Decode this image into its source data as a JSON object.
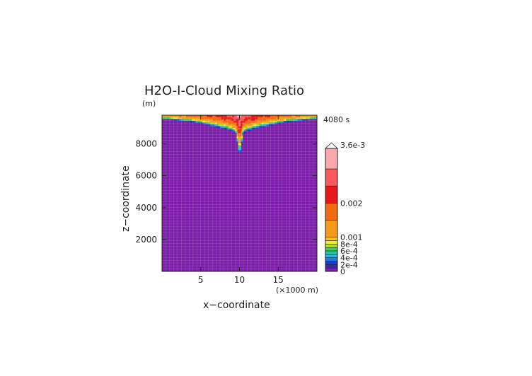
{
  "chart_data": {
    "type": "heatmap",
    "title": "H2O-I-Cloud Mixing Ratio",
    "y_unit": "(m)",
    "time_label": "4080 s",
    "xlabel": "x−coordinate",
    "ylabel": "z−coordinate",
    "x_unit": "(×1000 m)",
    "xlim": [
      0,
      20
    ],
    "ylim": [
      0,
      9800
    ],
    "x_ticks": [
      {
        "v": 5,
        "label": "5"
      },
      {
        "v": 10,
        "label": "10"
      },
      {
        "v": 15,
        "label": "15"
      }
    ],
    "y_ticks": [
      {
        "v": 2000,
        "label": "2000"
      },
      {
        "v": 4000,
        "label": "4000"
      },
      {
        "v": 6000,
        "label": "6000"
      },
      {
        "v": 8000,
        "label": "8000"
      }
    ],
    "grid": true,
    "colorbar": {
      "max_label": "3.6e-3",
      "labels": [
        {
          "v": 0,
          "label": "0"
        },
        {
          "v": 0.0002,
          "label": "2e-4"
        },
        {
          "v": 0.0004,
          "label": "4e-4"
        },
        {
          "v": 0.0006,
          "label": "6e-4"
        },
        {
          "v": 0.0008,
          "label": "8e-4"
        },
        {
          "v": 0.001,
          "label": "0.001"
        },
        {
          "v": 0.002,
          "label": "0.002"
        }
      ],
      "levels": [
        {
          "v": 0.0,
          "color": "#7d1eab"
        },
        {
          "v": 0.0001,
          "color": "#3a2aa8"
        },
        {
          "v": 0.0002,
          "color": "#1e3cd2"
        },
        {
          "v": 0.0003,
          "color": "#1e7be0"
        },
        {
          "v": 0.0004,
          "color": "#1fb6e6"
        },
        {
          "v": 0.0005,
          "color": "#26c7a4"
        },
        {
          "v": 0.0006,
          "color": "#3fce52"
        },
        {
          "v": 0.0007,
          "color": "#b4e02b"
        },
        {
          "v": 0.0008,
          "color": "#f2ee2c"
        },
        {
          "v": 0.0009,
          "color": "#f7c41c"
        },
        {
          "v": 0.001,
          "color": "#f79a19"
        },
        {
          "v": 0.0015,
          "color": "#f26a10"
        },
        {
          "v": 0.002,
          "color": "#e8161a"
        },
        {
          "v": 0.0025,
          "color": "#f8595c"
        },
        {
          "v": 0.003,
          "color": "#fba8aa"
        }
      ]
    },
    "field": {
      "background_value": 0,
      "top_layer": [
        {
          "x": 0.5,
          "depth": 250,
          "peak": 0.0016
        },
        {
          "x": 2,
          "depth": 320,
          "peak": 0.0017
        },
        {
          "x": 4,
          "depth": 430,
          "peak": 0.0019
        },
        {
          "x": 6,
          "depth": 650,
          "peak": 0.0022
        },
        {
          "x": 8,
          "depth": 850,
          "peak": 0.0026
        },
        {
          "x": 9.5,
          "depth": 1100,
          "peak": 0.003
        },
        {
          "x": 10,
          "depth": 2700,
          "peak": 0.0032
        },
        {
          "x": 10.5,
          "depth": 1100,
          "peak": 0.003
        },
        {
          "x": 12,
          "depth": 850,
          "peak": 0.0026
        },
        {
          "x": 14,
          "depth": 650,
          "peak": 0.0022
        },
        {
          "x": 16,
          "depth": 430,
          "peak": 0.0019
        },
        {
          "x": 18,
          "depth": 320,
          "peak": 0.0017
        },
        {
          "x": 19.5,
          "depth": 250,
          "peak": 0.0016
        }
      ]
    }
  }
}
